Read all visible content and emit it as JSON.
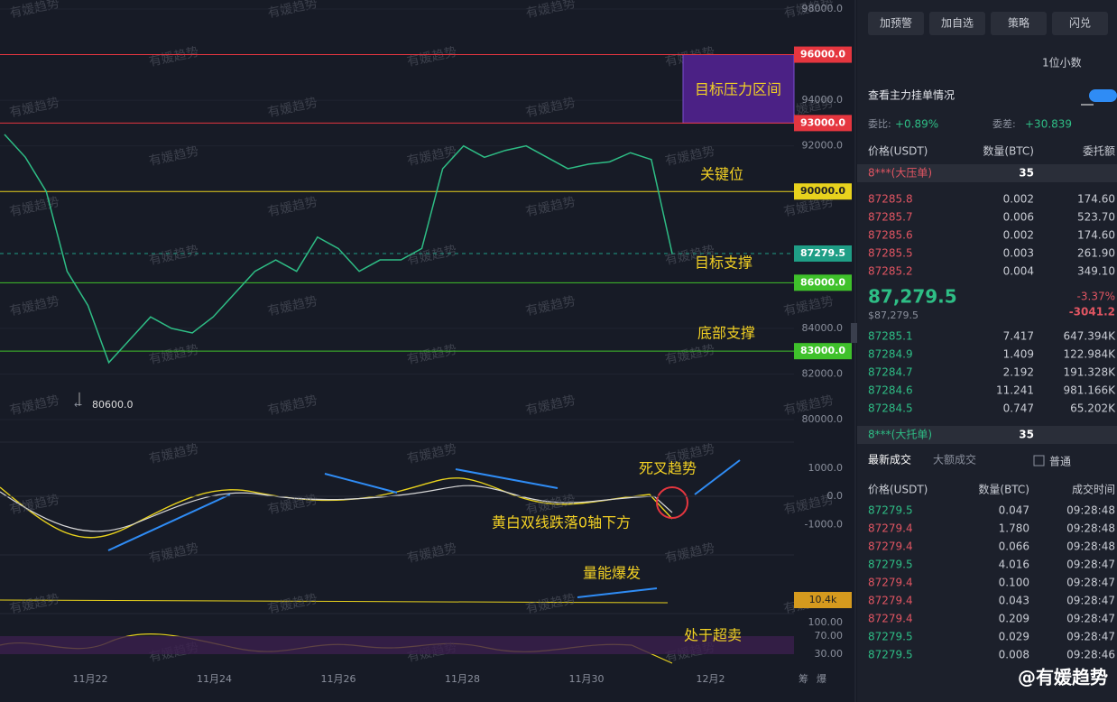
{
  "toolbar": {
    "buttons": [
      "加预警",
      "加自选",
      "策略",
      "闪兑"
    ]
  },
  "chart": {
    "watermark": "有媛趋势",
    "price_axis": {
      "lim": [
        80000,
        98000
      ],
      "ticks": [
        {
          "value": 98000,
          "label": "98000.0"
        },
        {
          "value": 94000,
          "label": "94000.0"
        },
        {
          "value": 92000,
          "label": "92000.0"
        },
        {
          "value": 84000,
          "label": "84000.0"
        },
        {
          "value": 82000,
          "label": "82000.0"
        },
        {
          "value": 80000,
          "label": "80000.0"
        }
      ]
    },
    "levels": [
      {
        "value": 96000,
        "label": "96000.0",
        "color": "#e5363f"
      },
      {
        "value": 93000,
        "label": "93000.0",
        "color": "#e5363f"
      },
      {
        "value": 90000,
        "label": "90000.0",
        "color": "#e8d21d"
      },
      {
        "value": 87279.5,
        "label": "87279.5",
        "color": "#1f9e86"
      },
      {
        "value": 86000,
        "label": "86000.0",
        "color": "#3fc12b"
      },
      {
        "value": 83000,
        "label": "83000.0",
        "color": "#3fc12b"
      }
    ],
    "closes": [
      92500,
      91500,
      90000,
      86500,
      85000,
      82500,
      83500,
      84500,
      84000,
      83800,
      84500,
      85500,
      86500,
      87000,
      86500,
      88000,
      87500,
      86500,
      87000,
      87000,
      87500,
      91000,
      92000,
      91500,
      91800,
      92000,
      91500,
      91000,
      91200,
      91300,
      91700,
      91400,
      87279.5
    ],
    "low": {
      "value": 80600,
      "label": "80600.0"
    },
    "dates": [
      "11月22",
      "11月24",
      "11月26",
      "11月28",
      "11月30",
      "12月2"
    ],
    "macd_axis": {
      "lim": [
        -1600,
        1600
      ],
      "ticks": [
        {
          "value": 1000,
          "label": "1000.0"
        },
        {
          "value": 0,
          "label": "0.0"
        },
        {
          "value": -1000,
          "label": "-1000.0"
        }
      ]
    },
    "volume_tag": "10.4k",
    "rsi_axis": {
      "lim": [
        0,
        100
      ],
      "ticks": [
        {
          "value": 100,
          "label": "100.00"
        },
        {
          "value": 70,
          "label": "70.00"
        },
        {
          "value": 30,
          "label": "30.00"
        }
      ]
    },
    "annotations": {
      "pressure_zone": "目标压力区间",
      "key_level": "关键位",
      "target_support": "目标支撑",
      "bottom_support": "底部支撑",
      "death_cross": "死叉趋势",
      "macd_note": "黄白双线跌落0轴下方",
      "volume_note": "量能爆发",
      "rsi_note": "处于超卖"
    },
    "corner_labels": [
      "筹",
      "爆"
    ]
  },
  "orderbook": {
    "decimals": "1位小数",
    "whale_toggle": "查看主力挂单情况",
    "ratio_label": "委比:",
    "ratio": "+0.89%",
    "diff_label": "委差:",
    "diff": "+30.839",
    "headers": [
      "价格(USDT)",
      "数量(BTC)",
      "委托额"
    ],
    "big_ask": {
      "label": "8***(大压单)",
      "qty": "35"
    },
    "asks": [
      [
        "87285.8",
        "0.002",
        "174.60"
      ],
      [
        "87285.7",
        "0.006",
        "523.70"
      ],
      [
        "87285.6",
        "0.002",
        "174.60"
      ],
      [
        "87285.5",
        "0.003",
        "261.90"
      ],
      [
        "87285.2",
        "0.004",
        "349.10"
      ]
    ],
    "mid": "87,279.5",
    "mid_usd": "$87,279.5",
    "change_pct": "-3.37%",
    "change": "-3041.2",
    "bids": [
      [
        "87285.1",
        "7.417",
        "647.394K"
      ],
      [
        "87284.9",
        "1.409",
        "122.984K"
      ],
      [
        "87284.7",
        "2.192",
        "191.328K"
      ],
      [
        "87284.6",
        "11.241",
        "981.166K"
      ],
      [
        "87284.5",
        "0.747",
        "65.202K"
      ]
    ],
    "big_bid": {
      "label": "8***(大托单)",
      "qty": "35"
    }
  },
  "trades": {
    "tabs": [
      "最新成交",
      "大额成交"
    ],
    "filter": "普通",
    "headers": [
      "价格(USDT)",
      "数量(BTC)",
      "成交时间"
    ],
    "rows": [
      {
        "price": "87279.5",
        "qty": "0.047",
        "time": "09:28:48",
        "color": "#2ebd85"
      },
      {
        "price": "87279.4",
        "qty": "1.780",
        "time": "09:28:48",
        "color": "#e15562"
      },
      {
        "price": "87279.4",
        "qty": "0.066",
        "time": "09:28:48",
        "color": "#e15562"
      },
      {
        "price": "87279.5",
        "qty": "4.016",
        "time": "09:28:47",
        "color": "#2ebd85"
      },
      {
        "price": "87279.4",
        "qty": "0.100",
        "time": "09:28:47",
        "color": "#e15562"
      },
      {
        "price": "87279.4",
        "qty": "0.043",
        "time": "09:28:47",
        "color": "#e15562"
      },
      {
        "price": "87279.4",
        "qty": "0.209",
        "time": "09:28:47",
        "color": "#e15562"
      },
      {
        "price": "87279.5",
        "qty": "0.029",
        "time": "09:28:47",
        "color": "#2ebd85"
      },
      {
        "price": "87279.5",
        "qty": "0.008",
        "time": "09:28:46",
        "color": "#2ebd85"
      }
    ]
  },
  "brand": "@有媛趋势"
}
